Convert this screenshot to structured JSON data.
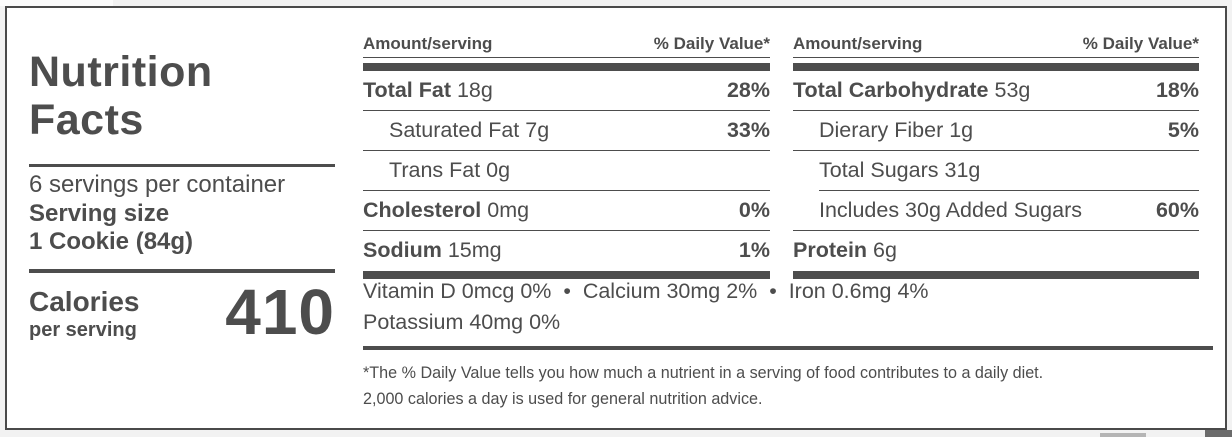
{
  "label": {
    "title_line1": "Nutrition",
    "title_line2": "Facts",
    "servings_per_container": "6 servings per container",
    "serving_size_label": "Serving size",
    "serving_size_value": "1 Cookie (84g)",
    "calories_label": "Calories",
    "calories_sub": "per serving",
    "calories_value": "410",
    "tables": [
      {
        "header_left": "Amount/serving",
        "header_right": "% Daily Value*",
        "rows": [
          {
            "bold": "Total Fat",
            "rest": " 18g",
            "dv": "28%",
            "indent": false,
            "insetDivider": false
          },
          {
            "bold": "",
            "rest": "Saturated Fat 7g",
            "dv": "33%",
            "indent": true,
            "insetDivider": false
          },
          {
            "bold": "",
            "rest": "Trans Fat 0g",
            "dv": "",
            "indent": true,
            "insetDivider": false
          },
          {
            "bold": "Cholesterol",
            "rest": " 0mg",
            "dv": "0%",
            "indent": false,
            "insetDivider": false
          },
          {
            "bold": "Sodium",
            "rest": " 15mg",
            "dv": "1%",
            "indent": false,
            "insetDivider": false
          }
        ]
      },
      {
        "header_left": "Amount/serving",
        "header_right": "% Daily Value*",
        "rows": [
          {
            "bold": "Total Carbohydrate",
            "rest": " 53g",
            "dv": "18%",
            "indent": false,
            "insetDivider": false
          },
          {
            "bold": "",
            "rest": "Dierary Fiber 1g",
            "dv": "5%",
            "indent": true,
            "insetDivider": false
          },
          {
            "bold": "",
            "rest": "Total Sugars 31g",
            "dv": "",
            "indent": true,
            "insetDivider": false
          },
          {
            "bold": "",
            "rest": "Includes 30g Added Sugars",
            "dv": "60%",
            "indent": true,
            "insetDivider": true
          },
          {
            "bold": "Protein",
            "rest": " 6g",
            "dv": "",
            "indent": false,
            "insetDivider": false
          }
        ]
      }
    ],
    "micronutrients_line1": "Vitamin D 0mcg 0%  •  Calcium 30mg 2%  •  Iron 0.6mg 4%",
    "micronutrients_line2": "Potassium 40mg 0%",
    "footnote_line1": "*The % Daily Value tells you how much a nutrient in a serving of food contributes to a daily diet.",
    "footnote_line2": "2,000 calories a day is used for general nutrition advice.",
    "colors": {
      "text": "#4d4d4d",
      "bar": "#4d4d4d",
      "panel_border": "#4a4a4a",
      "page_bg": "#f2f2f2",
      "panel_bg": "#ffffff"
    }
  }
}
